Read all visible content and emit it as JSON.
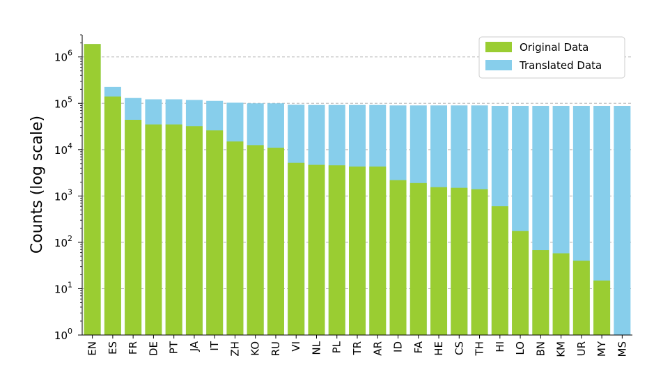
{
  "chart_data": {
    "type": "bar",
    "stacked": true,
    "scale": "log",
    "ylabel": "Counts (log scale)",
    "xlabel": "",
    "title": "",
    "ylim": [
      1,
      3000000
    ],
    "yticks": [
      {
        "value": 1,
        "base": "10",
        "exp": "0"
      },
      {
        "value": 10,
        "base": "10",
        "exp": "1"
      },
      {
        "value": 100,
        "base": "10",
        "exp": "2"
      },
      {
        "value": 1000,
        "base": "10",
        "exp": "3"
      },
      {
        "value": 10000,
        "base": "10",
        "exp": "4"
      },
      {
        "value": 100000,
        "base": "10",
        "exp": "5"
      },
      {
        "value": 1000000,
        "base": "10",
        "exp": "6"
      }
    ],
    "grid": "y-major-dashed",
    "legend_position": "top-right",
    "categories": [
      "EN",
      "ES",
      "FR",
      "DE",
      "PT",
      "JA",
      "IT",
      "ZH",
      "KO",
      "RU",
      "VI",
      "NL",
      "PL",
      "TR",
      "AR",
      "ID",
      "FA",
      "HE",
      "CS",
      "TH",
      "HI",
      "LO",
      "BN",
      "KM",
      "UR",
      "MY",
      "MS"
    ],
    "series": [
      {
        "name": "Original Data",
        "color": "#9acd32",
        "values": [
          1900000,
          140000,
          44000,
          35000,
          35000,
          32000,
          26000,
          15000,
          12500,
          11000,
          5200,
          4700,
          4600,
          4300,
          4300,
          2200,
          1900,
          1550,
          1500,
          1400,
          600,
          175,
          68,
          58,
          40,
          15,
          1
        ]
      },
      {
        "name": "Translated Data",
        "color": "#87ceeb",
        "values": [
          1900000,
          225000,
          130000,
          122000,
          122000,
          118000,
          113000,
          103000,
          100000,
          100000,
          93000,
          92000,
          92000,
          92000,
          92000,
          90000,
          90000,
          90000,
          90000,
          90000,
          88000,
          88000,
          88000,
          88000,
          88000,
          88000,
          88000
        ]
      }
    ]
  }
}
